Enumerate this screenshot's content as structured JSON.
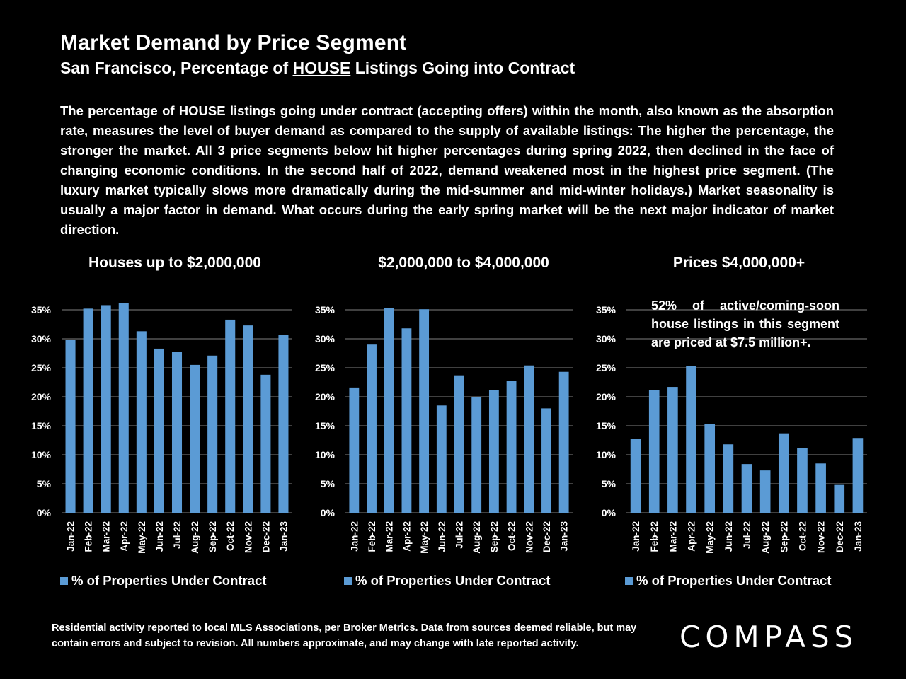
{
  "header": {
    "title": "Market Demand by Price Segment",
    "subtitle_pre": "San Francisco, Percentage of ",
    "subtitle_emph": "HOUSE",
    "subtitle_post": " Listings Going into Contract"
  },
  "description": "The percentage of HOUSE listings going under contract (accepting offers) within the month, also known as the absorption rate, measures the level of buyer demand as compared to the supply of available listings: The higher the percentage, the stronger the market. All 3 price segments below hit higher percentages during spring 2022, then declined in the face of changing economic conditions. In the second half of 2022, demand weakened most in the highest price segment. (The luxury market typically slows more dramatically during the mid-summer and mid-winter holidays.) Market seasonality is usually a major factor in demand. What occurs during the early spring market will be the next major indicator of market direction.",
  "note": "52% of active/coming-soon house listings in this segment are priced at $7.5 million+.",
  "footer": "Residential activity reported to local MLS Associations, per Broker Metrics. Data from sources deemed reliable, but may contain errors and subject to revision. All numbers approximate, and may change with late reported activity.",
  "logo": "COMPASS",
  "colors": {
    "bar": "#5b9bd5",
    "background": "#000000",
    "grid": "#7f7f7f"
  },
  "chart_data": [
    {
      "type": "bar",
      "title": "Houses up to $2,000,000",
      "categories": [
        "Jan-22",
        "Feb-22",
        "Mar-22",
        "Apr-22",
        "May-22",
        "Jun-22",
        "Jul-22",
        "Aug-22",
        "Sep-22",
        "Oct-22",
        "Nov-22",
        "Dec-22",
        "Jan-23"
      ],
      "series": [
        {
          "name": "% of Properties Under Contract",
          "values": [
            29.8,
            35.2,
            35.8,
            36.2,
            31.3,
            28.3,
            27.8,
            25.5,
            27.1,
            33.3,
            32.3,
            23.8,
            30.7
          ]
        }
      ],
      "yticks": [
        "0%",
        "5%",
        "10%",
        "15%",
        "20%",
        "25%",
        "30%",
        "35%"
      ],
      "ylim": [
        0,
        35
      ]
    },
    {
      "type": "bar",
      "title": "$2,000,000 to $4,000,000",
      "categories": [
        "Jan-22",
        "Feb-22",
        "Mar-22",
        "Apr-22",
        "May-22",
        "Jun-22",
        "Jul-22",
        "Aug-22",
        "Sep-22",
        "Oct-22",
        "Nov-22",
        "Dec-22",
        "Jan-23"
      ],
      "series": [
        {
          "name": "% of Properties Under Contract",
          "values": [
            21.6,
            29.0,
            35.3,
            31.8,
            35.1,
            18.5,
            23.7,
            19.9,
            21.1,
            22.8,
            25.4,
            18.0,
            24.3
          ]
        }
      ],
      "yticks": [
        "0%",
        "5%",
        "10%",
        "15%",
        "20%",
        "25%",
        "30%",
        "35%"
      ],
      "ylim": [
        0,
        35
      ]
    },
    {
      "type": "bar",
      "title": "Prices $4,000,000+",
      "categories": [
        "Jan-22",
        "Feb-22",
        "Mar-22",
        "Apr-22",
        "May-22",
        "Jun-22",
        "Jul-22",
        "Aug-22",
        "Sep-22",
        "Oct-22",
        "Nov-22",
        "Dec-22",
        "Jan-23"
      ],
      "series": [
        {
          "name": "% of Properties Under Contract",
          "values": [
            12.8,
            21.2,
            21.7,
            25.3,
            15.3,
            11.8,
            8.4,
            7.3,
            13.7,
            11.1,
            8.5,
            4.8,
            12.9
          ]
        }
      ],
      "yticks": [
        "0%",
        "5%",
        "10%",
        "15%",
        "20%",
        "25%",
        "30%",
        "35%"
      ],
      "ylim": [
        0,
        35
      ]
    }
  ]
}
